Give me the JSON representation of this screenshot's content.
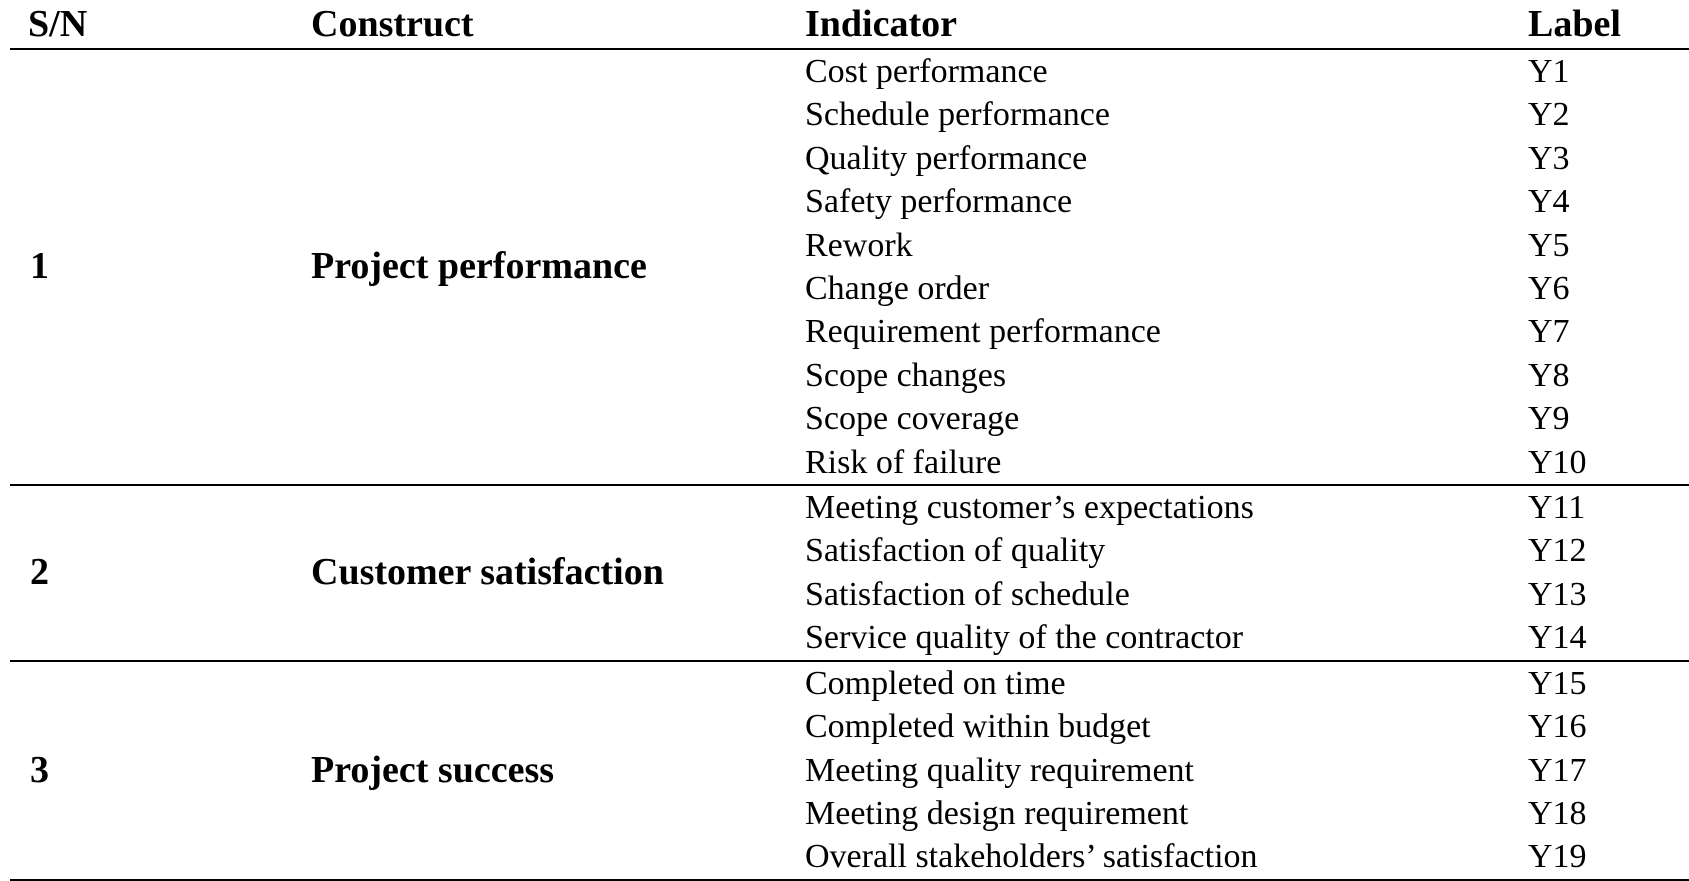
{
  "table": {
    "headers": {
      "sn": "S/N",
      "construct": "Construct",
      "indicator": "Indicator",
      "label": "Label"
    },
    "groups": [
      {
        "sn": "1",
        "construct": "Project performance",
        "rows": [
          {
            "indicator": "Cost performance",
            "label": "Y1"
          },
          {
            "indicator": "Schedule performance",
            "label": "Y2"
          },
          {
            "indicator": "Quality performance",
            "label": "Y3"
          },
          {
            "indicator": "Safety performance",
            "label": "Y4"
          },
          {
            "indicator": "Rework",
            "label": "Y5"
          },
          {
            "indicator": "Change order",
            "label": "Y6"
          },
          {
            "indicator": "Requirement performance",
            "label": "Y7"
          },
          {
            "indicator": "Scope changes",
            "label": "Y8"
          },
          {
            "indicator": "Scope coverage",
            "label": "Y9"
          },
          {
            "indicator": "Risk of failure",
            "label": "Y10"
          }
        ]
      },
      {
        "sn": "2",
        "construct": "Customer satisfaction",
        "rows": [
          {
            "indicator": "Meeting customer’s expectations",
            "label": "Y11"
          },
          {
            "indicator": "Satisfaction of quality",
            "label": "Y12"
          },
          {
            "indicator": "Satisfaction of schedule",
            "label": "Y13"
          },
          {
            "indicator": "Service quality of the contractor",
            "label": "Y14"
          }
        ]
      },
      {
        "sn": "3",
        "construct": "Project success",
        "rows": [
          {
            "indicator": "Completed on time",
            "label": "Y15"
          },
          {
            "indicator": "Completed within budget",
            "label": "Y16"
          },
          {
            "indicator": "Meeting quality requirement",
            "label": "Y17"
          },
          {
            "indicator": "Meeting design requirement",
            "label": "Y18"
          },
          {
            "indicator": "Overall stakeholders’ satisfaction",
            "label": "Y19"
          }
        ]
      }
    ]
  }
}
